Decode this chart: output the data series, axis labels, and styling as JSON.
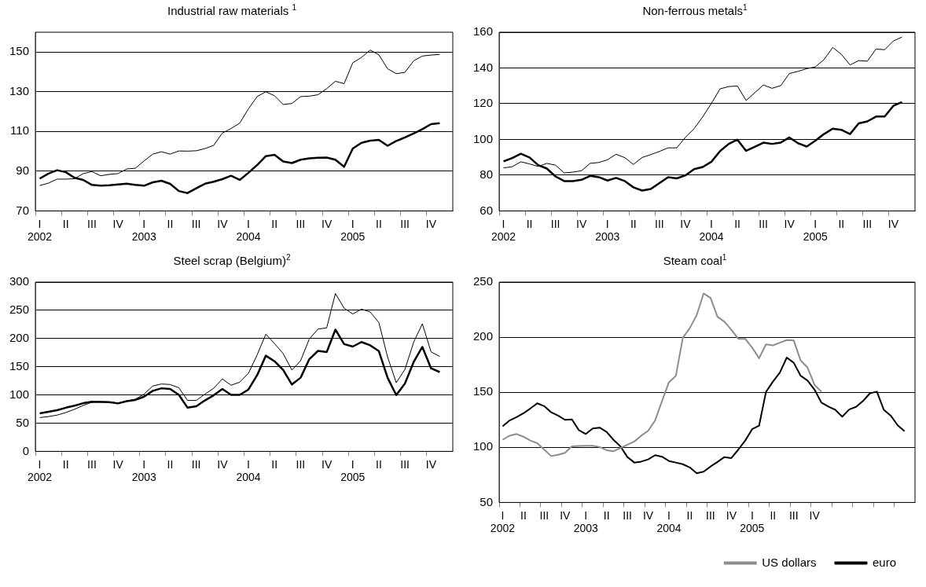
{
  "chart_data": [
    {
      "type": "line",
      "title": "Industrial raw materials $^{1}$",
      "categories": [
        "I\n2002",
        null,
        null,
        "II",
        null,
        null,
        "III",
        null,
        null,
        "IV",
        null,
        null,
        "I\n2003",
        null,
        null,
        "II",
        null,
        null,
        "III",
        null,
        null,
        "IV",
        null,
        null,
        "I\n2004",
        null,
        null,
        "II",
        null,
        null,
        "III",
        null,
        null,
        "IV",
        null,
        null,
        "I\n2005",
        null,
        null,
        "II",
        null,
        null,
        "III",
        null,
        null,
        "IV",
        null,
        null
      ],
      "series": [
        {
          "color": "#000000",
          "values": [
            82.8,
            84,
            86,
            86,
            86.2,
            88.8,
            89.8,
            87.7,
            88.4,
            88.8,
            91.1,
            91.5,
            95.2,
            98.6,
            99.8,
            98.6,
            100.2,
            100.1,
            100.3,
            101.4,
            103,
            109.2,
            111.5,
            114.2,
            121.4,
            127.6,
            130,
            128,
            123.6,
            124.1,
            127.6,
            127.8,
            128.5,
            131.6,
            135.3,
            134.1,
            144.6,
            147.3,
            151,
            148.6,
            141.6,
            139.1,
            139.8,
            145.6,
            148,
            148.5,
            148.8,
            null
          ]
        },
        {
          "color": "#000000",
          "values": [
            86.3,
            88.8,
            90.5,
            89.5,
            86.7,
            85.6,
            83.1,
            82.7,
            82.9,
            83.3,
            83.7,
            83.1,
            82.7,
            84.4,
            85.2,
            83.6,
            80,
            79,
            81.4,
            83.7,
            84.7,
            86,
            87.7,
            85.6,
            89.2,
            93.1,
            97.6,
            98.3,
            94.9,
            94.1,
            95.8,
            96.5,
            96.8,
            96.9,
            95.8,
            92.2,
            101.4,
            104.3,
            105.4,
            105.8,
            102.8,
            105.2,
            107,
            109,
            111.2,
            113.7,
            114.2,
            null
          ]
        }
      ],
      "ylim": [
        70,
        160
      ],
      "yticks": [
        70,
        90,
        110,
        130,
        150
      ],
      "grid": "y"
    },
    {
      "type": "line",
      "title": "Non-ferrous metals$^{1}$",
      "categories": [
        "I\n2002",
        null,
        null,
        "II",
        null,
        null,
        "III",
        null,
        null,
        "IV",
        null,
        null,
        "I\n2003",
        null,
        null,
        "II",
        null,
        null,
        "III",
        null,
        null,
        "IV",
        null,
        null,
        "I\n2004",
        null,
        null,
        "II",
        null,
        null,
        "III",
        null,
        null,
        "IV",
        null,
        null,
        "I\n2005",
        null,
        null,
        "II",
        null,
        null,
        "III",
        null,
        null,
        "IV",
        null,
        null
      ],
      "series": [
        {
          "color": "#000000",
          "values": [
            84.1,
            84.7,
            87.5,
            86.3,
            84.9,
            86.6,
            85.6,
            81.3,
            81.7,
            82.5,
            86.6,
            87.1,
            88.6,
            91.7,
            89.8,
            86,
            89.9,
            91.5,
            93.3,
            95.3,
            95.3,
            101.2,
            106,
            112.7,
            120.2,
            128.3,
            129.6,
            129.9,
            121.8,
            126.1,
            130.5,
            128.6,
            130.1,
            136.9,
            138.1,
            139.6,
            140.6,
            144.7,
            151.5,
            147.6,
            141.7,
            144.1,
            143.8,
            150.6,
            150.2,
            155.1,
            157.3,
            null
          ]
        },
        {
          "color": "#000000",
          "values": [
            87.7,
            89.6,
            92,
            89.9,
            85.6,
            83.7,
            79.3,
            76.7,
            76.7,
            77.4,
            79.6,
            78.9,
            77,
            78.5,
            76.7,
            73.2,
            71.4,
            72.3,
            75.6,
            78.9,
            78.2,
            79.9,
            83.4,
            84.6,
            87.5,
            93.5,
            97.5,
            99.9,
            93.6,
            95.9,
            98.2,
            97.5,
            98.2,
            101.1,
            97.9,
            96,
            99.3,
            103,
            106,
            105.4,
            103,
            109,
            110.1,
            112.8,
            112.8,
            118.8,
            120.9,
            null
          ]
        }
      ],
      "ylim": [
        60,
        160
      ],
      "yticks": [
        60,
        80,
        100,
        120,
        140,
        160
      ],
      "grid": "y"
    },
    {
      "type": "line",
      "title": "Steel scrap (Belgium)$^{2}$",
      "categories": [
        "I\n2002",
        null,
        null,
        "II",
        null,
        null,
        "III",
        null,
        null,
        "IV",
        null,
        null,
        "I\n2003",
        null,
        null,
        "II",
        null,
        null,
        "III",
        null,
        null,
        "IV",
        null,
        null,
        "I\n2004",
        null,
        null,
        "II",
        null,
        null,
        "III",
        null,
        null,
        "IV",
        null,
        null,
        "I\n2005",
        null,
        null,
        "II",
        null,
        null,
        "III",
        null,
        null,
        "IV",
        null,
        null
      ],
      "series": [
        {
          "color": "#000000",
          "values": [
            59.9,
            61.6,
            64.3,
            68.8,
            74.6,
            81.4,
            87.2,
            88.1,
            87.6,
            85.8,
            89,
            92.6,
            101.5,
            115.9,
            119.4,
            118.5,
            112.7,
            90.3,
            90.3,
            101.5,
            111.8,
            128.4,
            117.2,
            122.6,
            138.3,
            171,
            207.7,
            191.1,
            173.2,
            144.1,
            160.7,
            199.2,
            216.7,
            218.9,
            279.8,
            253.9,
            243.5,
            252.1,
            247.1,
            228.3,
            167.4,
            121.7,
            145.4,
            193.4,
            226.1,
            176.3,
            168.3,
            null
          ]
        },
        {
          "color": "#000000",
          "values": [
            67.5,
            70.2,
            72.9,
            77.4,
            80.9,
            85.4,
            88.1,
            87.6,
            87.2,
            85,
            89,
            91.2,
            97,
            107.3,
            111.8,
            110.5,
            100.2,
            77.4,
            80,
            90.3,
            99.3,
            110.5,
            100.2,
            100.2,
            109.6,
            135.1,
            169.6,
            159.7,
            144.1,
            118.5,
            130.6,
            163.4,
            178.1,
            175.9,
            215.8,
            190.2,
            185.8,
            193.8,
            188,
            177.7,
            130.6,
            99.7,
            120.3,
            158.4,
            185.1,
            147.2,
            140.5,
            null
          ]
        }
      ],
      "ylim": [
        0,
        300
      ],
      "yticks": [
        0,
        50,
        100,
        150,
        200,
        250,
        300
      ],
      "grid": "y"
    },
    {
      "type": "line",
      "title": "Steam coal$^{1}$",
      "categories": [
        "I\n2002",
        null,
        null,
        "II",
        null,
        null,
        "III",
        null,
        null,
        "IV",
        null,
        null,
        "I\n2003",
        null,
        null,
        "II",
        null,
        null,
        "III",
        null,
        null,
        "IV",
        null,
        null,
        "I\n2004",
        null,
        null,
        "II",
        null,
        null,
        "III",
        null,
        null,
        "IV",
        null,
        null,
        "I\n2005",
        null,
        null,
        "II",
        null,
        null,
        "III",
        null,
        null,
        "IV",
        null,
        null,
        null,
        null,
        null,
        null,
        null,
        null,
        null,
        null,
        null,
        null,
        null,
        null
      ],
      "series": [
        {
          "name": "US dollars",
          "color": "#8c8c8c",
          "values": [
            106.8,
            110.6,
            112.1,
            109.7,
            106.2,
            103.8,
            97.9,
            92.1,
            93.2,
            95,
            100.9,
            101.2,
            101.5,
            101.5,
            100.3,
            97.4,
            96.5,
            99.4,
            102.4,
            105.3,
            110.6,
            115,
            124.4,
            142.1,
            159.1,
            165,
            199.4,
            208.2,
            220,
            239.7,
            235.6,
            218.5,
            214.1,
            206.8,
            198.5,
            198.5,
            190.6,
            180.9,
            193.5,
            192.6,
            195,
            197.4,
            197.1,
            178.8,
            172.4,
            156.8,
            150.6,
            null,
            null,
            null,
            null,
            null,
            null,
            null,
            null,
            null,
            null,
            null,
            null,
            null
          ]
        },
        {
          "name": "euro",
          "color": "#000000",
          "values": [
            119.1,
            124.4,
            127.4,
            130.9,
            135.3,
            140,
            137.4,
            131.8,
            128.8,
            125,
            125.3,
            115.6,
            112.1,
            117.1,
            117.9,
            114.1,
            106.8,
            100.9,
            91.2,
            86.2,
            87.1,
            89.1,
            92.9,
            91.5,
            87.6,
            86.2,
            84.7,
            81.8,
            76.5,
            77.9,
            82.6,
            86.8,
            91.2,
            90.3,
            97.9,
            106.2,
            116.5,
            119.7,
            150.3,
            159.7,
            167.9,
            181.5,
            176.8,
            165,
            160.6,
            152.4,
            140.6,
            137.1,
            134.1,
            127.9,
            134.4,
            136.8,
            142.1,
            149.1,
            150.6,
            134.1,
            128.8,
            120,
            114.7,
            null
          ]
        }
      ],
      "ylim": [
        50,
        250
      ],
      "yticks": [
        50,
        100,
        150,
        200,
        250
      ],
      "grid": "y",
      "legend": "bottom"
    }
  ]
}
